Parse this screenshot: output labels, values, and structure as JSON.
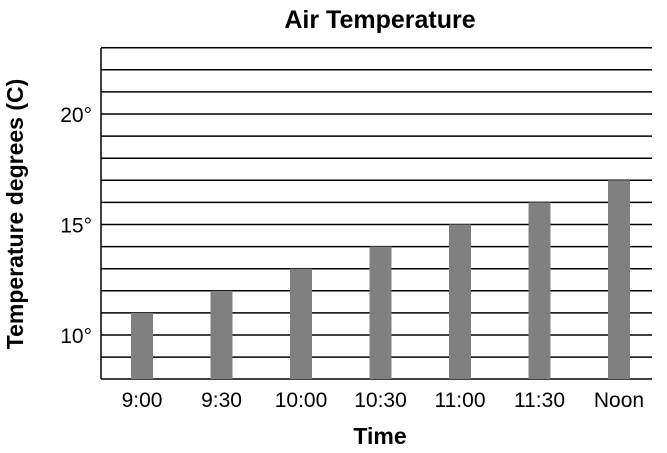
{
  "chart_data": {
    "type": "bar",
    "title": "Air Temperature",
    "xlabel": "Time",
    "ylabel": "Temperature degrees (C)",
    "categories": [
      "9:00",
      "9:30",
      "10:00",
      "10:30",
      "11:00",
      "11:30",
      "Noon"
    ],
    "values": [
      11,
      12,
      13,
      14,
      15,
      16,
      17
    ],
    "ylim": [
      8,
      23
    ],
    "yticks": [
      10,
      15,
      20
    ],
    "ytick_labels": [
      "10°",
      "15°",
      "20°"
    ],
    "grid_step": 1,
    "grid": true,
    "legend": "none",
    "bar_color": "#808080"
  }
}
